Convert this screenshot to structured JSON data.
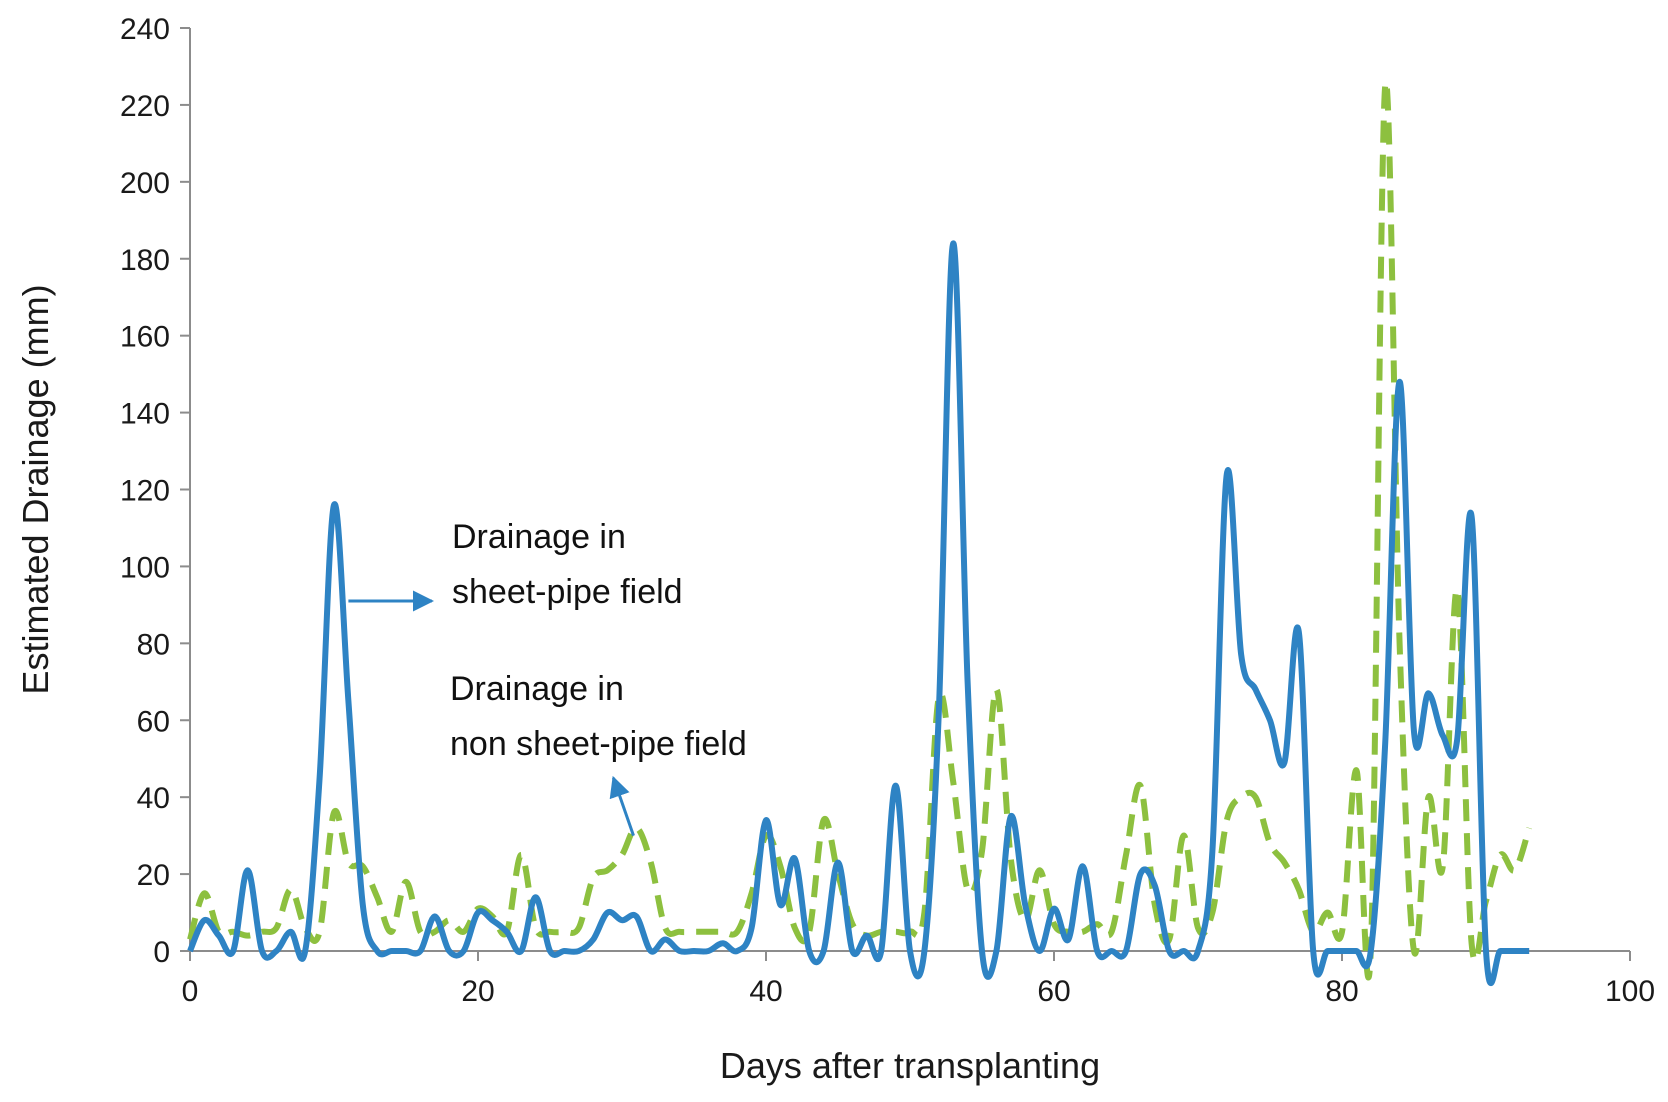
{
  "chart_data": {
    "type": "line",
    "title": "",
    "xlabel": "Days after transplanting",
    "ylabel": "Estimated Drainage (mm)",
    "xlim": [
      0,
      100
    ],
    "ylim": [
      0,
      240
    ],
    "xticks": [
      0,
      20,
      40,
      60,
      80,
      100
    ],
    "yticks": [
      0,
      20,
      40,
      60,
      80,
      100,
      120,
      140,
      160,
      180,
      200,
      220,
      240
    ],
    "grid": false,
    "series": [
      {
        "name": "Drainage in sheet-pipe field",
        "color": "#2e83c4",
        "style": "solid",
        "points": [
          [
            0,
            0
          ],
          [
            1,
            8
          ],
          [
            2,
            4
          ],
          [
            3,
            0
          ],
          [
            4,
            21
          ],
          [
            5,
            0
          ],
          [
            6,
            0
          ],
          [
            7,
            5
          ],
          [
            8,
            0
          ],
          [
            9,
            45
          ],
          [
            10,
            116
          ],
          [
            11,
            65
          ],
          [
            12,
            12
          ],
          [
            13,
            0
          ],
          [
            14,
            0
          ],
          [
            15,
            0
          ],
          [
            16,
            0
          ],
          [
            17,
            9
          ],
          [
            18,
            0
          ],
          [
            19,
            0
          ],
          [
            20,
            10
          ],
          [
            21,
            8
          ],
          [
            22,
            5
          ],
          [
            23,
            0
          ],
          [
            24,
            14
          ],
          [
            25,
            0
          ],
          [
            26,
            0
          ],
          [
            27,
            0
          ],
          [
            28,
            3
          ],
          [
            29,
            10
          ],
          [
            30,
            8
          ],
          [
            31,
            9
          ],
          [
            32,
            0
          ],
          [
            33,
            3
          ],
          [
            34,
            0
          ],
          [
            35,
            0
          ],
          [
            36,
            0
          ],
          [
            37,
            2
          ],
          [
            38,
            0
          ],
          [
            39,
            6
          ],
          [
            40,
            34
          ],
          [
            41,
            12
          ],
          [
            42,
            24
          ],
          [
            43,
            0
          ],
          [
            44,
            0
          ],
          [
            45,
            23
          ],
          [
            46,
            0
          ],
          [
            47,
            4
          ],
          [
            48,
            0
          ],
          [
            49,
            43
          ],
          [
            50,
            0
          ],
          [
            51,
            0
          ],
          [
            52,
            62
          ],
          [
            53,
            184
          ],
          [
            54,
            70
          ],
          [
            55,
            0
          ],
          [
            56,
            0
          ],
          [
            57,
            35
          ],
          [
            58,
            12
          ],
          [
            59,
            0
          ],
          [
            60,
            11
          ],
          [
            61,
            3
          ],
          [
            62,
            22
          ],
          [
            63,
            0
          ],
          [
            64,
            0
          ],
          [
            65,
            0
          ],
          [
            66,
            20
          ],
          [
            67,
            17
          ],
          [
            68,
            0
          ],
          [
            69,
            0
          ],
          [
            70,
            0
          ],
          [
            71,
            26
          ],
          [
            72,
            124
          ],
          [
            73,
            77
          ],
          [
            74,
            68
          ],
          [
            75,
            60
          ],
          [
            76,
            49
          ],
          [
            77,
            83
          ],
          [
            78,
            0
          ],
          [
            79,
            0
          ],
          [
            80,
            0
          ],
          [
            81,
            0
          ],
          [
            82,
            0
          ],
          [
            83,
            54
          ],
          [
            84,
            148
          ],
          [
            85,
            57
          ],
          [
            86,
            67
          ],
          [
            87,
            56
          ],
          [
            88,
            55
          ],
          [
            89,
            113
          ],
          [
            90,
            0
          ],
          [
            91,
            0
          ],
          [
            92,
            0
          ],
          [
            93,
            0
          ]
        ]
      },
      {
        "name": "Drainage in non sheet-pipe field",
        "color": "#8dc03f",
        "style": "dashed",
        "points": [
          [
            0,
            3
          ],
          [
            1,
            15
          ],
          [
            2,
            5
          ],
          [
            3,
            5
          ],
          [
            4,
            4
          ],
          [
            5,
            5
          ],
          [
            6,
            6
          ],
          [
            7,
            16
          ],
          [
            8,
            6
          ],
          [
            9,
            5
          ],
          [
            10,
            36
          ],
          [
            11,
            23
          ],
          [
            12,
            22
          ],
          [
            13,
            14
          ],
          [
            14,
            5
          ],
          [
            15,
            18
          ],
          [
            16,
            5
          ],
          [
            17,
            5
          ],
          [
            18,
            8
          ],
          [
            19,
            5
          ],
          [
            20,
            11
          ],
          [
            21,
            9
          ],
          [
            22,
            5
          ],
          [
            23,
            25
          ],
          [
            24,
            6
          ],
          [
            25,
            5
          ],
          [
            26,
            5
          ],
          [
            27,
            6
          ],
          [
            28,
            19
          ],
          [
            29,
            21
          ],
          [
            30,
            25
          ],
          [
            31,
            32
          ],
          [
            32,
            23
          ],
          [
            33,
            6
          ],
          [
            34,
            5
          ],
          [
            35,
            5
          ],
          [
            36,
            5
          ],
          [
            37,
            5
          ],
          [
            38,
            5
          ],
          [
            39,
            15
          ],
          [
            40,
            30
          ],
          [
            41,
            22
          ],
          [
            42,
            6
          ],
          [
            43,
            5
          ],
          [
            44,
            34
          ],
          [
            45,
            20
          ],
          [
            46,
            7
          ],
          [
            47,
            4
          ],
          [
            48,
            5
          ],
          [
            49,
            5
          ],
          [
            50,
            5
          ],
          [
            51,
            10
          ],
          [
            52,
            66
          ],
          [
            53,
            44
          ],
          [
            54,
            16
          ],
          [
            55,
            26
          ],
          [
            56,
            68
          ],
          [
            57,
            24
          ],
          [
            58,
            8
          ],
          [
            59,
            21
          ],
          [
            60,
            7
          ],
          [
            61,
            5
          ],
          [
            62,
            5
          ],
          [
            63,
            7
          ],
          [
            64,
            5
          ],
          [
            65,
            25
          ],
          [
            66,
            43
          ],
          [
            67,
            12
          ],
          [
            68,
            3
          ],
          [
            69,
            30
          ],
          [
            70,
            6
          ],
          [
            71,
            10
          ],
          [
            72,
            34
          ],
          [
            73,
            40
          ],
          [
            74,
            40
          ],
          [
            75,
            28
          ],
          [
            76,
            23
          ],
          [
            77,
            16
          ],
          [
            78,
            5
          ],
          [
            79,
            10
          ],
          [
            80,
            5
          ],
          [
            81,
            47
          ],
          [
            82,
            0
          ],
          [
            83,
            225
          ],
          [
            84,
            80
          ],
          [
            85,
            0
          ],
          [
            86,
            40
          ],
          [
            87,
            22
          ],
          [
            88,
            94
          ],
          [
            89,
            2
          ],
          [
            90,
            13
          ],
          [
            91,
            25
          ],
          [
            92,
            21
          ],
          [
            93,
            32
          ]
        ]
      }
    ],
    "annotations": [
      {
        "lines": [
          "Drainage in",
          "sheet-pipe field"
        ],
        "arrow_from": [
          11.0,
          91
        ],
        "arrow_to": [
          16.8,
          91
        ]
      },
      {
        "lines": [
          "Drainage in",
          "non sheet-pipe  field"
        ],
        "arrow_from": [
          30.8,
          30
        ],
        "arrow_to": [
          29.4,
          45
        ]
      }
    ]
  }
}
